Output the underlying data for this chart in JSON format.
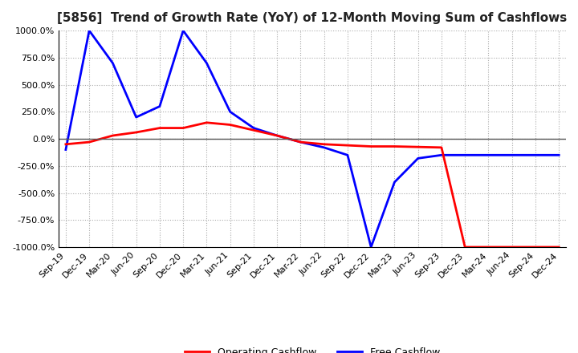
{
  "title": "[5856]  Trend of Growth Rate (YoY) of 12-Month Moving Sum of Cashflows",
  "ylim": [
    -1000,
    1000
  ],
  "yticks": [
    1000.0,
    750.0,
    500.0,
    250.0,
    0.0,
    -250.0,
    -500.0,
    -750.0,
    -1000.0
  ],
  "background_color": "#ffffff",
  "grid_color": "#aaaaaa",
  "operating_color": "#ff0000",
  "free_color": "#0000ff",
  "legend_labels": [
    "Operating Cashflow",
    "Free Cashflow"
  ],
  "dates": [
    "Sep-19",
    "Dec-19",
    "Mar-20",
    "Jun-20",
    "Sep-20",
    "Dec-20",
    "Mar-21",
    "Jun-21",
    "Sep-21",
    "Dec-21",
    "Mar-22",
    "Jun-22",
    "Sep-22",
    "Dec-22",
    "Mar-23",
    "Jun-23",
    "Sep-23",
    "Dec-23",
    "Mar-24",
    "Jun-24",
    "Sep-24",
    "Dec-24"
  ],
  "operating_cashflow": [
    -50,
    -30,
    30,
    60,
    100,
    100,
    150,
    130,
    80,
    30,
    -30,
    -50,
    -60,
    -70,
    -70,
    -75,
    -80,
    -1000,
    -1000,
    -1000,
    -1000,
    -1000
  ],
  "free_cashflow": [
    -100,
    1000,
    700,
    200,
    300,
    1000,
    700,
    250,
    100,
    30,
    -30,
    -80,
    -150,
    -1000,
    -400,
    -180,
    -150,
    -150,
    -150,
    -150,
    -150,
    -150
  ]
}
